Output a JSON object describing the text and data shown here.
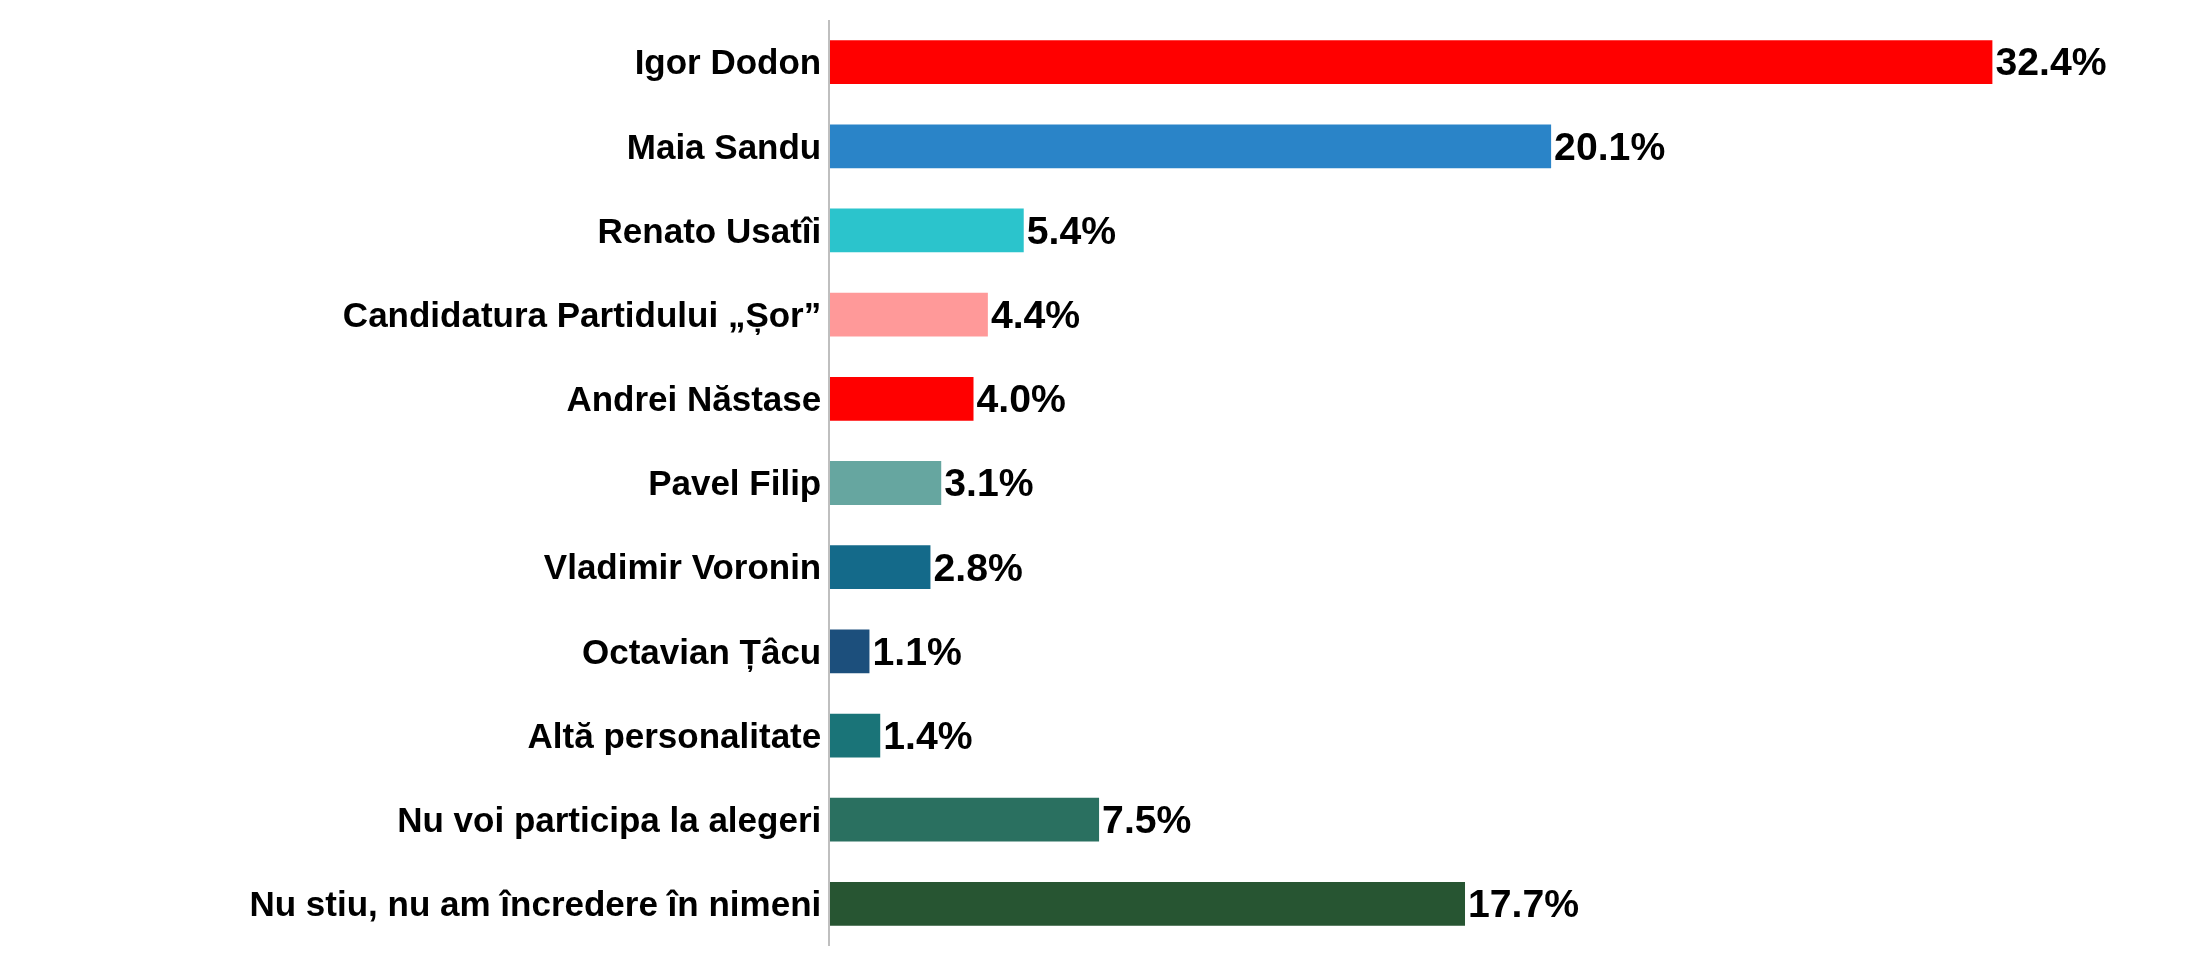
{
  "chart_data": {
    "type": "bar",
    "orientation": "horizontal",
    "categories": [
      "Igor Dodon",
      "Maia Sandu",
      "Renato Usatîi",
      "Candidatura Partidului „Șor”",
      "Andrei Năstase",
      "Pavel Filip",
      "Vladimir Voronin",
      "Octavian Țâcu",
      "Altă personalitate",
      "Nu voi participa la alegeri",
      "Nu stiu, nu am încredere în nimeni"
    ],
    "values": [
      32.4,
      20.1,
      5.4,
      4.4,
      4.0,
      3.1,
      2.8,
      1.1,
      1.4,
      7.5,
      17.7
    ],
    "value_labels": [
      "32.4%",
      "20.1%",
      "5.4%",
      "4.4%",
      "4.0%",
      "3.1%",
      "2.8%",
      "1.1%",
      "1.4%",
      "7.5%",
      "17.7%"
    ],
    "colors": [
      "#ff0000",
      "#2a84c8",
      "#2bc4cc",
      "#ff9999",
      "#ff0000",
      "#66a6a0",
      "#146a8a",
      "#1c4f7c",
      "#1a7478",
      "#2a7060",
      "#275532"
    ]
  }
}
